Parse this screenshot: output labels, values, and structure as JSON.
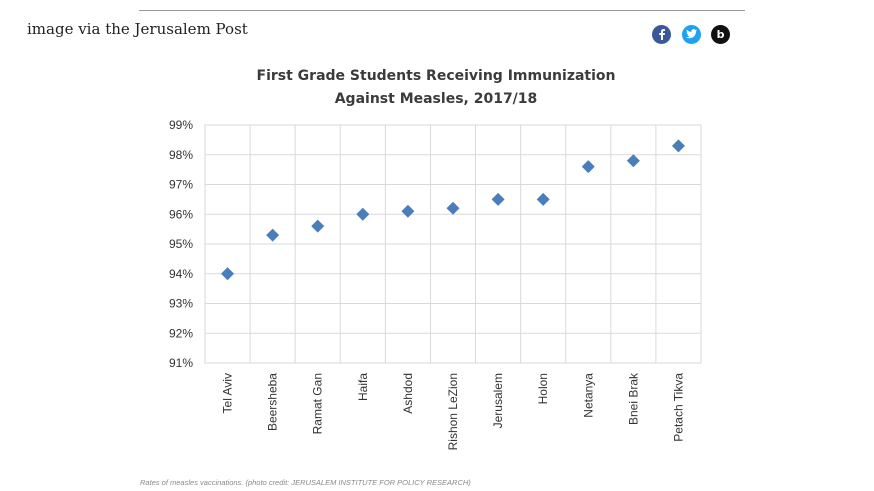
{
  "caption": "image via the Jerusalem Post",
  "social": {
    "facebook_icon": "facebook-icon",
    "twitter_icon": "twitter-icon",
    "blog_icon": "blog-icon",
    "blog_letter": "b",
    "facebook_color": "#3b5998",
    "twitter_color": "#1da1f2",
    "blog_color": "#111111"
  },
  "photo_credit": "Rates of measles vaccinations. (photo credit: JERUSALEM INSTITUTE FOR POLICY RESEARCH)",
  "chart_data": {
    "type": "scatter",
    "title": [
      "First Grade Students Receiving Immunization",
      "Against Measles, 2017/18"
    ],
    "xlabel": "",
    "ylabel": "",
    "categories": [
      "Tel Aviv",
      "Beersheba",
      "Ramat Gan",
      "Haifa",
      "Ashdod",
      "Rishon LeZion",
      "Jerusalem",
      "Holon",
      "Netanya",
      "Bnei Brak",
      "Petach Tikva"
    ],
    "values": [
      94.0,
      95.3,
      95.6,
      96.0,
      96.1,
      96.2,
      96.5,
      96.5,
      97.6,
      97.8,
      98.3
    ],
    "ylim": [
      91,
      99
    ],
    "yticks": [
      "91%",
      "92%",
      "93%",
      "94%",
      "95%",
      "96%",
      "97%",
      "98%",
      "99%"
    ],
    "grid": true,
    "marker": "diamond",
    "color": "#4a7ebb",
    "grid_color": "#d9d9d9"
  }
}
